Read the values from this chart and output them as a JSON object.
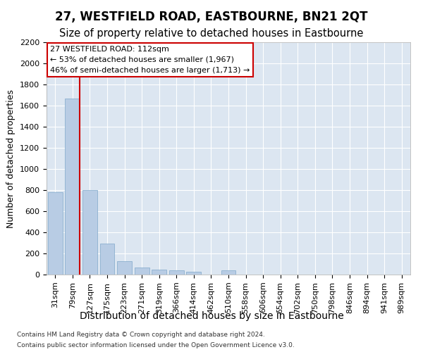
{
  "title": "27, WESTFIELD ROAD, EASTBOURNE, BN21 2QT",
  "subtitle": "Size of property relative to detached houses in Eastbourne",
  "xlabel": "Distribution of detached houses by size in Eastbourne",
  "ylabel": "Number of detached properties",
  "bins": [
    "31sqm",
    "79sqm",
    "127sqm",
    "175sqm",
    "223sqm",
    "271sqm",
    "319sqm",
    "366sqm",
    "414sqm",
    "462sqm",
    "510sqm",
    "558sqm",
    "606sqm",
    "654sqm",
    "702sqm",
    "750sqm",
    "798sqm",
    "846sqm",
    "894sqm",
    "941sqm",
    "989sqm"
  ],
  "values": [
    780,
    1670,
    800,
    295,
    130,
    65,
    50,
    40,
    30,
    0,
    40,
    0,
    0,
    0,
    0,
    0,
    0,
    0,
    0,
    0,
    0
  ],
  "bar_color": "#b8cce4",
  "bar_edge_color": "#7fa8c9",
  "vline_color": "#cc0000",
  "vline_x": 1.43,
  "annotation_text": "27 WESTFIELD ROAD: 112sqm\n← 53% of detached houses are smaller (1,967)\n46% of semi-detached houses are larger (1,713) →",
  "annotation_box_edgecolor": "#cc0000",
  "plot_bg_color": "#dce6f1",
  "ylim": [
    0,
    2200
  ],
  "yticks": [
    0,
    200,
    400,
    600,
    800,
    1000,
    1200,
    1400,
    1600,
    1800,
    2000,
    2200
  ],
  "footer_line1": "Contains HM Land Registry data © Crown copyright and database right 2024.",
  "footer_line2": "Contains public sector information licensed under the Open Government Licence v3.0.",
  "title_fontsize": 12,
  "subtitle_fontsize": 10.5,
  "xlabel_fontsize": 10,
  "ylabel_fontsize": 9,
  "tick_fontsize": 8,
  "annotation_fontsize": 8
}
